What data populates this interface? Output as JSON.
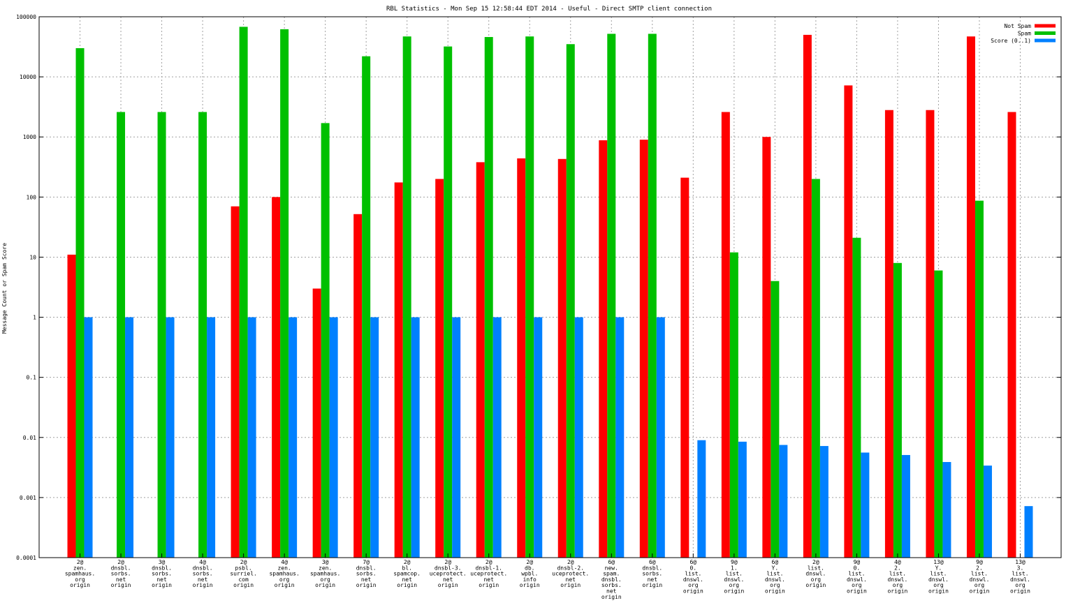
{
  "chart_data": {
    "type": "bar",
    "title": "RBL Statistics - Mon Sep 15 12:58:44 EDT 2014 - Useful - Direct SMTP client connection",
    "xlabel": "",
    "ylabel": "Message Count or Spam Score",
    "yscale": "log",
    "ylim": [
      0.0001,
      100000
    ],
    "yticks": [
      0.0001,
      0.001,
      0.01,
      0.1,
      1,
      10,
      100,
      1000,
      10000,
      100000
    ],
    "ytick_labels": [
      "0.0001",
      "0.001",
      "0.01",
      "0.1",
      "1",
      "10",
      "100",
      "1000",
      "10000",
      "100000"
    ],
    "grid": true,
    "legend_position": "top-right",
    "categories": [
      [
        "2@",
        "zen.",
        "spamhaus.",
        "org",
        "origin"
      ],
      [
        "2@",
        "dnsbl.",
        "sorbs.",
        "net",
        "origin"
      ],
      [
        "3@",
        "dnsbl.",
        "sorbs.",
        "net",
        "origin"
      ],
      [
        "4@",
        "dnsbl.",
        "sorbs.",
        "net",
        "origin"
      ],
      [
        "2@",
        "psbl.",
        "surriel.",
        "com",
        "origin"
      ],
      [
        "4@",
        "zen.",
        "spamhaus.",
        "org",
        "origin"
      ],
      [
        "3@",
        "zen.",
        "spamhaus.",
        "org",
        "origin"
      ],
      [
        "7@",
        "dnsbl.",
        "sorbs.",
        "net",
        "origin"
      ],
      [
        "2@",
        "bl.",
        "spamcop.",
        "net",
        "origin"
      ],
      [
        "2@",
        "dnsbl-3.",
        "uceprotect.",
        "net",
        "origin"
      ],
      [
        "2@",
        "dnsbl-1.",
        "uceprotect.",
        "net",
        "origin"
      ],
      [
        "2@",
        "db.",
        "wpbl.",
        "info",
        "origin"
      ],
      [
        "2@",
        "dnsbl-2.",
        "uceprotect.",
        "net",
        "origin"
      ],
      [
        "6@",
        "new.",
        "spam.",
        "dnsbl.",
        "sorbs.",
        "net",
        "origin"
      ],
      [
        "6@",
        "dnsbl.",
        "sorbs.",
        "net",
        "origin"
      ],
      [
        "6@",
        "0.",
        "list.",
        "dnswl.",
        "org",
        "origin"
      ],
      [
        "9@",
        "1.",
        "list.",
        "dnswl.",
        "org",
        "origin"
      ],
      [
        "6@",
        "Y.",
        "list.",
        "dnswl.",
        "org",
        "origin"
      ],
      [
        "2@",
        "list.",
        "dnswl.",
        "org",
        "origin"
      ],
      [
        "9@",
        "0.",
        "list.",
        "dnswl.",
        "org",
        "origin"
      ],
      [
        "4@",
        "2.",
        "list.",
        "dnswl.",
        "org",
        "origin"
      ],
      [
        "13@",
        "Y.",
        "list.",
        "dnswl.",
        "org",
        "origin"
      ],
      [
        "9@",
        "2.",
        "list.",
        "dnswl.",
        "org",
        "origin"
      ],
      [
        "13@",
        "3.",
        "list.",
        "dnswl.",
        "org",
        "origin"
      ]
    ],
    "series": [
      {
        "name": "Not Spam",
        "color": "#ff0000",
        "values": [
          11,
          null,
          null,
          null,
          70,
          100,
          3,
          52,
          175,
          200,
          380,
          440,
          430,
          880,
          900,
          210,
          2600,
          1000,
          50000,
          7200,
          2800,
          2800,
          47000,
          2600
        ]
      },
      {
        "name": "Spam",
        "color": "#00c000",
        "values": [
          30000,
          2600,
          2600,
          2600,
          68000,
          62000,
          1700,
          22000,
          47000,
          32000,
          46000,
          47000,
          35000,
          52000,
          52000,
          null,
          12,
          4,
          200,
          21,
          8,
          6,
          87,
          null
        ]
      },
      {
        "name": "Score (0..1)",
        "color": "#0080ff",
        "values": [
          1,
          1,
          1,
          1,
          1,
          1,
          1,
          1,
          1,
          1,
          1,
          1,
          1,
          1,
          1,
          0.009,
          0.0085,
          0.0075,
          0.0072,
          0.0056,
          0.0051,
          0.0039,
          0.0034,
          0.00072
        ]
      }
    ]
  }
}
